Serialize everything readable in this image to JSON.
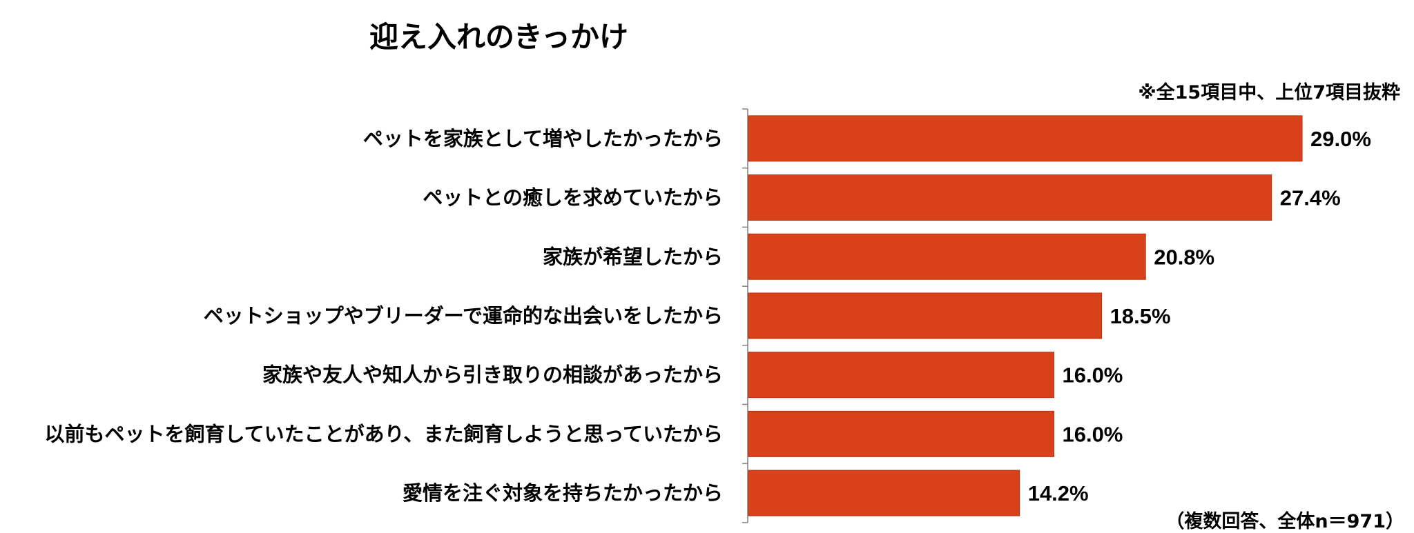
{
  "chart_data": {
    "type": "bar",
    "orientation": "horizontal",
    "title": "迎え入れのきっかけ",
    "note": "※全15項目中、上位7項目抜粋",
    "footnote": "（複数回答、全体n＝971）",
    "categories": [
      "ペットを家族として増やしたかったから",
      "ペットとの癒しを求めていたから",
      "家族が希望したから",
      "ペットショップやブリーダーで運命的な出会いをしたから",
      "家族や友人や知人から引き取りの相談があったから",
      "以前もペットを飼育していたことがあり、また飼育しようと思っていたから",
      "愛情を注ぐ対象を持ちたかったから"
    ],
    "values": [
      29.0,
      27.4,
      20.8,
      18.5,
      16.0,
      16.0,
      14.2
    ],
    "value_labels": [
      "29.0%",
      "27.4%",
      "20.8%",
      "18.5%",
      "16.0%",
      "16.0%",
      "14.2%"
    ],
    "bar_color": "#d9411a",
    "grid": false,
    "legend": "none"
  }
}
